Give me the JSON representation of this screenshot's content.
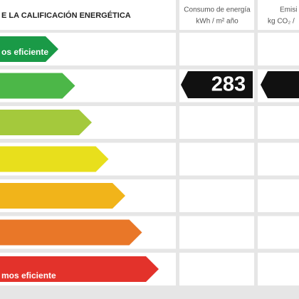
{
  "header": {
    "title": "E LA CALIFICACIÓN ENERGÉTICA",
    "consumption_label": "Consumo de energía",
    "consumption_unit": "kWh / m² año",
    "emissions_label": "Emisi",
    "emissions_unit": "kg CO₂ /"
  },
  "scale": {
    "top_label": "os eficiente",
    "bottom_label": "mos eficiente"
  },
  "consumption": {
    "value": 283
  }
}
